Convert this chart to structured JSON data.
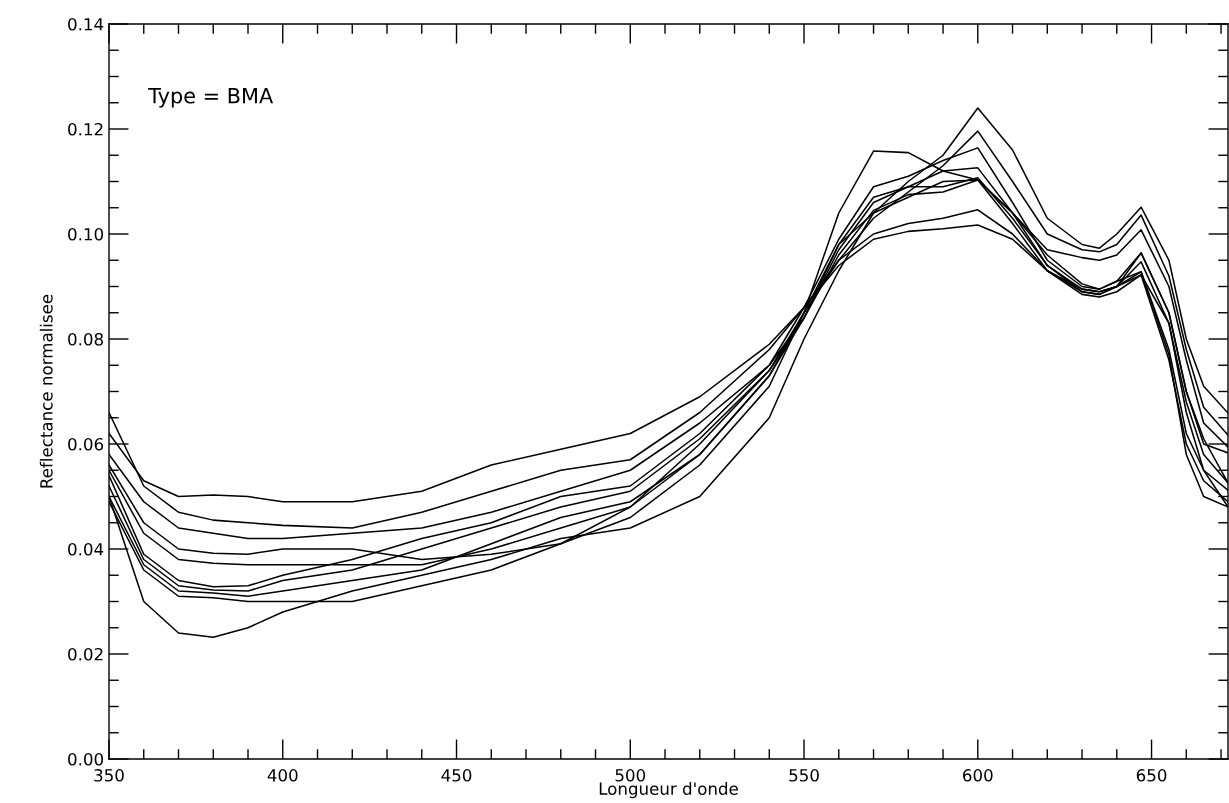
{
  "chart_data": {
    "type": "line",
    "xlabel": "Longueur d'onde",
    "ylabel": "Reflectance normalisee",
    "annotations": [
      "Type = BMA"
    ],
    "xlim": [
      350,
      672
    ],
    "ylim": [
      0,
      0.14
    ],
    "xticks": [
      350,
      {
        "value": 360,
        "label": null
      },
      {
        "value": 370,
        "label": null
      },
      {
        "value": 380,
        "label": null
      },
      {
        "value": 390,
        "label": null
      },
      400,
      {
        "value": 410,
        "label": null
      },
      {
        "value": 420,
        "label": null
      },
      {
        "value": 430,
        "label": null
      },
      {
        "value": 440,
        "label": null
      },
      450,
      {
        "value": 460,
        "label": null
      },
      {
        "value": 470,
        "label": null
      },
      {
        "value": 480,
        "label": null
      },
      {
        "value": 490,
        "label": null
      },
      500,
      {
        "value": 510,
        "label": null
      },
      {
        "value": 520,
        "label": null
      },
      {
        "value": 530,
        "label": null
      },
      {
        "value": 540,
        "label": null
      },
      550,
      {
        "value": 560,
        "label": null
      },
      {
        "value": 570,
        "label": null
      },
      {
        "value": 580,
        "label": null
      },
      {
        "value": 590,
        "label": null
      },
      600,
      {
        "value": 610,
        "label": null
      },
      {
        "value": 620,
        "label": null
      },
      {
        "value": 630,
        "label": null
      },
      {
        "value": 640,
        "label": null
      },
      650,
      {
        "value": 660,
        "label": null
      },
      {
        "value": 670,
        "label": null
      }
    ],
    "yticks": [
      {
        "value": 0,
        "label": "0.00"
      },
      {
        "value": 0.005,
        "label": null
      },
      {
        "value": 0.01,
        "label": null
      },
      {
        "value": 0.015,
        "label": null
      },
      0.02,
      {
        "value": 0.025,
        "label": null
      },
      {
        "value": 0.03,
        "label": null
      },
      {
        "value": 0.035,
        "label": null
      },
      0.04,
      {
        "value": 0.045,
        "label": null
      },
      {
        "value": 0.05,
        "label": null
      },
      {
        "value": 0.055,
        "label": null
      },
      0.06,
      {
        "value": 0.065,
        "label": null
      },
      {
        "value": 0.07,
        "label": null
      },
      {
        "value": 0.075,
        "label": null
      },
      0.08,
      {
        "value": 0.085,
        "label": null
      },
      {
        "value": 0.09,
        "label": null
      },
      {
        "value": 0.095,
        "label": null
      },
      {
        "value": 0.1,
        "label": "0.10"
      },
      {
        "value": 0.105,
        "label": null
      },
      {
        "value": 0.11,
        "label": null
      },
      {
        "value": 0.115,
        "label": null
      },
      0.12,
      {
        "value": 0.125,
        "label": null
      },
      {
        "value": 0.13,
        "label": null
      },
      {
        "value": 0.135,
        "label": null
      },
      0.14
    ],
    "grid": false,
    "legend": false,
    "marker": "none",
    "line_style": "solid",
    "x": [
      350,
      360,
      370,
      380,
      390,
      400,
      420,
      440,
      460,
      480,
      500,
      520,
      540,
      550,
      560,
      570,
      580,
      590,
      600,
      610,
      620,
      630,
      635,
      640,
      647,
      655,
      660,
      665,
      672
    ],
    "series": [
      {
        "color": "#000000",
        "values": [
          0.062,
          0.053,
          0.05,
          0.0503,
          0.05,
          0.049,
          0.049,
          0.051,
          0.056,
          0.059,
          0.062,
          0.069,
          0.079,
          0.086,
          0.094,
          0.099,
          0.1005,
          0.101,
          0.1017,
          0.099,
          0.093,
          0.0895,
          0.089,
          0.09,
          0.0922,
          0.083,
          0.066,
          0.055,
          0.048
        ]
      },
      {
        "color": "#000000",
        "values": [
          0.066,
          0.052,
          0.047,
          0.0455,
          0.045,
          0.0445,
          0.044,
          0.047,
          0.051,
          0.055,
          0.057,
          0.066,
          0.078,
          0.086,
          0.095,
          0.103,
          0.108,
          0.113,
          0.1196,
          0.11,
          0.1,
          0.097,
          0.0966,
          0.098,
          0.1036,
          0.092,
          0.078,
          0.067,
          0.0617
        ]
      },
      {
        "color": "#000000",
        "values": [
          0.058,
          0.049,
          0.044,
          0.043,
          0.042,
          0.042,
          0.043,
          0.044,
          0.047,
          0.051,
          0.055,
          0.064,
          0.075,
          0.084,
          0.096,
          0.1045,
          0.1075,
          0.108,
          0.1103,
          0.104,
          0.097,
          0.0955,
          0.095,
          0.096,
          0.1008,
          0.09,
          0.076,
          0.064,
          0.0594
        ]
      },
      {
        "color": "#000000",
        "values": [
          0.056,
          0.045,
          0.04,
          0.0392,
          0.039,
          0.04,
          0.04,
          0.038,
          0.039,
          0.041,
          0.048,
          0.06,
          0.074,
          0.084,
          0.097,
          0.106,
          0.109,
          0.112,
          0.1126,
          0.104,
          0.094,
          0.0895,
          0.089,
          0.09,
          0.0964,
          0.085,
          0.07,
          0.06,
          0.0583
        ]
      },
      {
        "color": "#000000",
        "values": [
          0.055,
          0.043,
          0.038,
          0.0373,
          0.037,
          0.037,
          0.037,
          0.037,
          0.04,
          0.044,
          0.048,
          0.058,
          0.073,
          0.084,
          0.098,
          0.107,
          0.109,
          0.109,
          0.1107,
          0.103,
          0.094,
          0.089,
          0.0885,
          0.09,
          0.0947,
          0.083,
          0.068,
          0.058,
          0.0526
        ]
      },
      {
        "color": "#000000",
        "values": [
          0.054,
          0.039,
          0.034,
          0.0328,
          0.033,
          0.035,
          0.038,
          0.042,
          0.045,
          0.05,
          0.052,
          0.062,
          0.075,
          0.086,
          0.099,
          0.109,
          0.111,
          0.114,
          0.1164,
          0.106,
          0.095,
          0.09,
          0.0895,
          0.091,
          0.0928,
          0.078,
          0.062,
          0.055,
          0.0512
        ]
      },
      {
        "color": "#000000",
        "values": [
          0.052,
          0.038,
          0.033,
          0.0322,
          0.032,
          0.034,
          0.036,
          0.04,
          0.044,
          0.048,
          0.051,
          0.061,
          0.074,
          0.085,
          0.098,
          0.104,
          0.107,
          0.11,
          0.1103,
          0.102,
          0.093,
          0.0885,
          0.088,
          0.089,
          0.0922,
          0.076,
          0.06,
          0.053,
          0.049
        ]
      },
      {
        "color": "#000000",
        "values": [
          0.05,
          0.037,
          0.032,
          0.0316,
          0.031,
          0.032,
          0.034,
          0.036,
          0.041,
          0.046,
          0.049,
          0.058,
          0.073,
          0.085,
          0.095,
          0.1,
          0.102,
          0.103,
          0.1046,
          0.1,
          0.093,
          0.089,
          0.0885,
          0.09,
          0.0928,
          0.077,
          0.058,
          0.05,
          0.048
        ]
      },
      {
        "color": "#000000",
        "values": [
          0.049,
          0.036,
          0.031,
          0.0307,
          0.03,
          0.03,
          0.03,
          0.033,
          0.036,
          0.041,
          0.046,
          0.056,
          0.071,
          0.085,
          0.104,
          0.1158,
          0.1155,
          0.112,
          0.1103,
          0.104,
          0.096,
          0.0905,
          0.0895,
          0.091,
          0.0964,
          0.085,
          0.07,
          0.061,
          0.0526
        ]
      },
      {
        "color": "#000000",
        "values": [
          0.05,
          0.03,
          0.024,
          0.0232,
          0.025,
          0.028,
          0.032,
          0.035,
          0.038,
          0.042,
          0.044,
          0.05,
          0.065,
          0.08,
          0.093,
          0.104,
          0.11,
          0.115,
          0.124,
          0.116,
          0.103,
          0.098,
          0.0973,
          0.1,
          0.1051,
          0.095,
          0.08,
          0.071,
          0.0659
        ]
      }
    ]
  }
}
